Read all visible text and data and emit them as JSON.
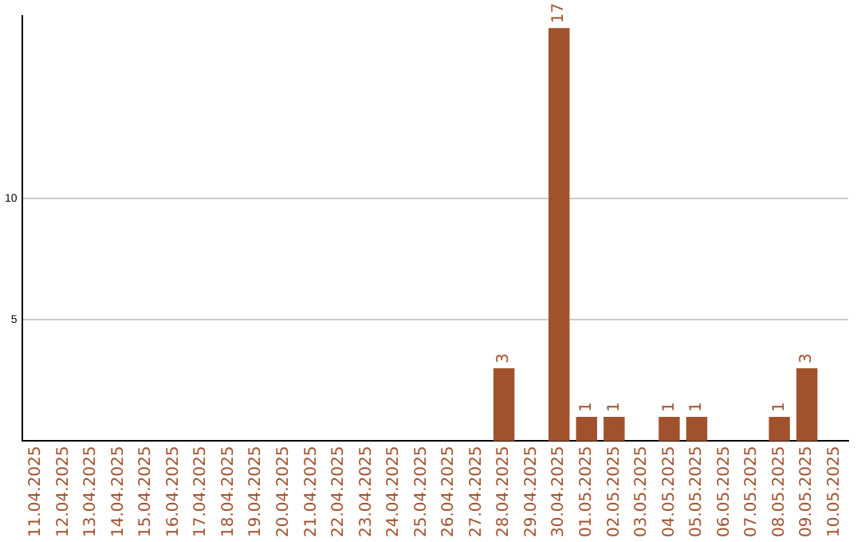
{
  "chart_data": {
    "type": "bar",
    "categories": [
      "11.04.2025",
      "12.04.2025",
      "13.04.2025",
      "14.04.2025",
      "15.04.2025",
      "16.04.2025",
      "17.04.2025",
      "18.04.2025",
      "19.04.2025",
      "20.04.2025",
      "21.04.2025",
      "22.04.2025",
      "23.04.2025",
      "24.04.2025",
      "25.04.2025",
      "26.04.2025",
      "27.04.2025",
      "28.04.2025",
      "29.04.2025",
      "30.04.2025",
      "01.05.2025",
      "02.05.2025",
      "03.05.2025",
      "04.05.2025",
      "05.05.2025",
      "06.05.2025",
      "07.05.2025",
      "08.05.2025",
      "09.05.2025",
      "10.05.2025"
    ],
    "values": [
      0,
      0,
      0,
      0,
      0,
      0,
      0,
      0,
      0,
      0,
      0,
      0,
      0,
      0,
      0,
      0,
      0,
      3,
      0,
      17,
      1,
      1,
      0,
      1,
      1,
      0,
      0,
      1,
      3,
      0
    ],
    "value_labels": [
      null,
      null,
      null,
      null,
      null,
      null,
      null,
      null,
      null,
      null,
      null,
      null,
      null,
      null,
      null,
      null,
      null,
      "3",
      null,
      "17",
      "1",
      "1",
      null,
      "1",
      "1",
      null,
      null,
      "1",
      "3",
      null
    ],
    "color": "#a0522d",
    "ylim": [
      0,
      17.5
    ],
    "yticks": [
      5,
      10
    ],
    "grid": "y"
  }
}
